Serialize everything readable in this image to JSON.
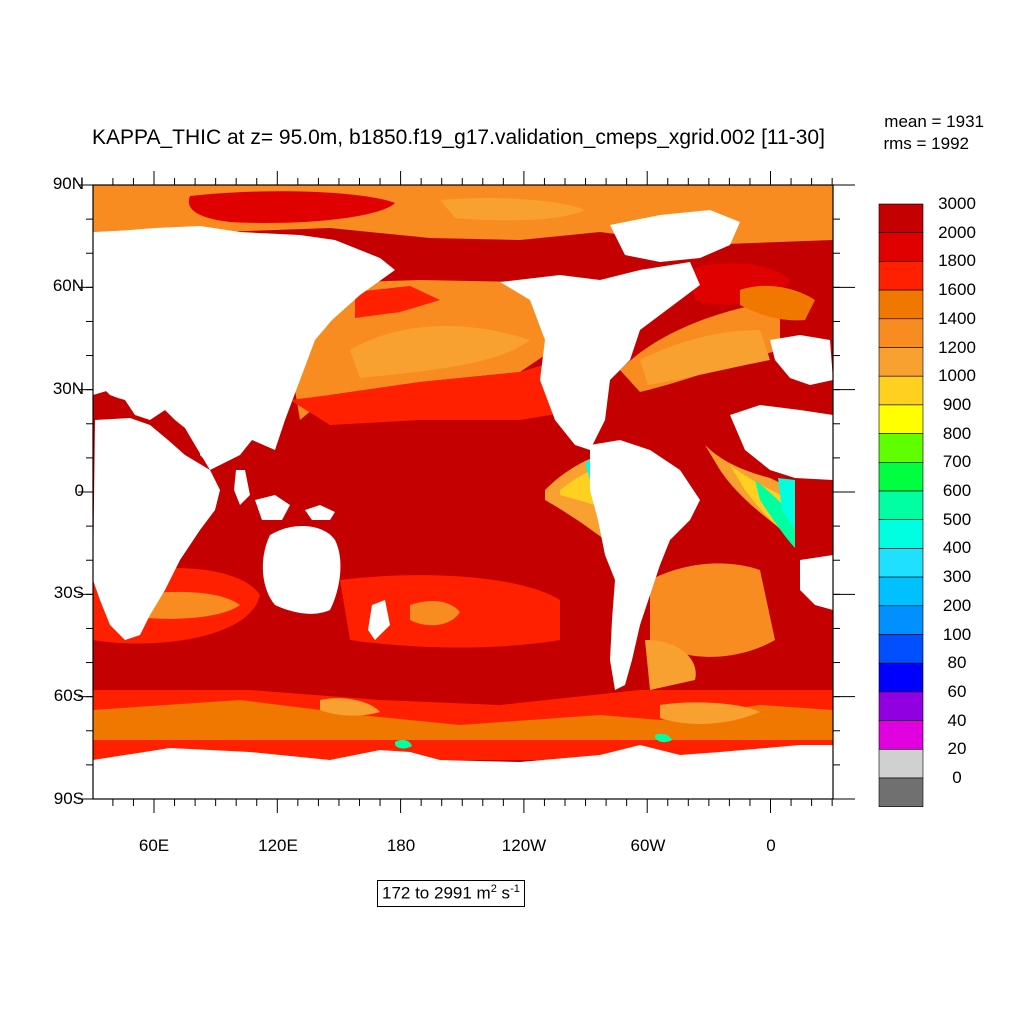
{
  "plot": {
    "title": "KAPPA_THIC at z=  95.0m, b1850.f19_g17.validation_cmeps_xgrid.002 [11-30]",
    "mean_text": "mean = 1931",
    "rms_text": "rms = 1992",
    "range_text": "172 to 2991 m",
    "range_unit_sup1": "2",
    "range_unit_s": " s",
    "range_unit_sup2": "-1"
  },
  "axes": {
    "lat_labels": [
      "90N",
      "60N",
      "30N",
      "0",
      "30S",
      "60S",
      "90S"
    ],
    "lon_labels": [
      "60E",
      "120E",
      "180",
      "120W",
      "60W",
      "0"
    ]
  },
  "colorbar": {
    "labels": [
      "3000",
      "2000",
      "1800",
      "1600",
      "1400",
      "1200",
      "1000",
      "900",
      "800",
      "700",
      "600",
      "500",
      "400",
      "300",
      "200",
      "100",
      "80",
      "60",
      "40",
      "20",
      "0"
    ],
    "colors": [
      "#c40000",
      "#e00000",
      "#ff2000",
      "#f07800",
      "#f88c20",
      "#f8a030",
      "#ffd020",
      "#ffff00",
      "#60ff00",
      "#00ff40",
      "#00ffa0",
      "#00ffe0",
      "#20e0ff",
      "#00c0ff",
      "#0090ff",
      "#0050ff",
      "#0000ff",
      "#9000e0",
      "#e000e0",
      "#d0d0d0",
      "#707070"
    ]
  },
  "colors": {
    "ocean_high": "#c40000",
    "ocean_mid": "#ff2000",
    "ocean_orange": "#f07800",
    "ocean_light_orange": "#f8a030",
    "coastal_yellow": "#ffd020",
    "coastal_cyan": "#00ffe0",
    "land": "#ffffff"
  }
}
